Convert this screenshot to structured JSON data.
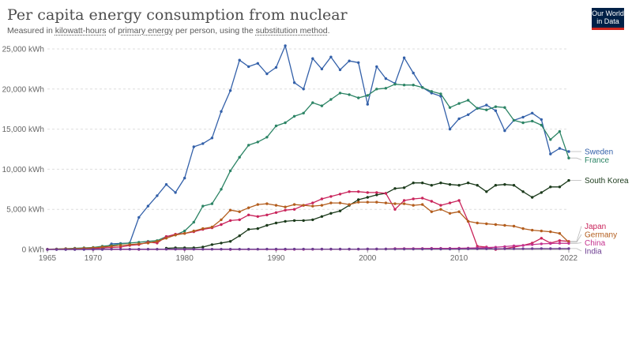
{
  "header": {
    "title": "Per capita energy consumption from nuclear",
    "subtitle_parts": {
      "p1": "Measured in ",
      "l1": "kilowatt-hours",
      "p2": " of ",
      "l2": "primary energy",
      "p3": " per person, using the ",
      "l3": "substitution method",
      "p4": "."
    }
  },
  "logo": {
    "line1": "Our World",
    "line2": "in Data",
    "colors": {
      "bg": "#002147",
      "accent": "#ce261e"
    }
  },
  "chart_data": {
    "type": "line",
    "title": "Per capita energy consumption from nuclear",
    "xlim": [
      1965,
      2022
    ],
    "ylim": [
      0,
      25000
    ],
    "x_ticks": [
      1965,
      1970,
      1980,
      1990,
      2000,
      2010,
      2022
    ],
    "y_ticks": [
      {
        "value": 0,
        "label": "0 kWh"
      },
      {
        "value": 5000,
        "label": "5,000 kWh"
      },
      {
        "value": 10000,
        "label": "10,000 kWh"
      },
      {
        "value": 15000,
        "label": "15,000 kWh"
      },
      {
        "value": 20000,
        "label": "20,000 kWh"
      },
      {
        "value": 25000,
        "label": "25,000 kWh"
      }
    ],
    "grid": true,
    "legend": "right, labels at line ends",
    "series": [
      {
        "name": "Sweden",
        "color": "#3360a9",
        "x": [
          1965,
          1966,
          1967,
          1968,
          1969,
          1970,
          1971,
          1972,
          1973,
          1974,
          1975,
          1976,
          1977,
          1978,
          1979,
          1980,
          1981,
          1982,
          1983,
          1984,
          1985,
          1986,
          1987,
          1988,
          1989,
          1990,
          1991,
          1992,
          1993,
          1994,
          1995,
          1996,
          1997,
          1998,
          1999,
          2000,
          2001,
          2002,
          2003,
          2004,
          2005,
          2006,
          2007,
          2008,
          2009,
          2010,
          2011,
          2012,
          2013,
          2014,
          2015,
          2016,
          2017,
          2018,
          2019,
          2020,
          2021,
          2022
        ],
        "y": [
          0,
          0,
          0,
          0,
          0,
          0,
          0,
          700,
          750,
          800,
          4000,
          5400,
          6700,
          8100,
          7100,
          8900,
          12800,
          13200,
          13900,
          17200,
          19800,
          23600,
          22800,
          23200,
          21900,
          22700,
          25400,
          20800,
          20000,
          23800,
          22500,
          24000,
          22400,
          23500,
          23300,
          18100,
          22800,
          21300,
          20700,
          23900,
          22000,
          20200,
          19500,
          19100,
          15000,
          16300,
          16800,
          17600,
          18000,
          17300,
          14800,
          16100,
          16500,
          17000,
          16200,
          11900,
          12600,
          12200
        ]
      },
      {
        "name": "France",
        "color": "#2c8465",
        "x": [
          1965,
          1966,
          1967,
          1968,
          1969,
          1970,
          1971,
          1972,
          1973,
          1974,
          1975,
          1976,
          1977,
          1978,
          1979,
          1980,
          1981,
          1982,
          1983,
          1984,
          1985,
          1986,
          1987,
          1988,
          1989,
          1990,
          1991,
          1992,
          1993,
          1994,
          1995,
          1996,
          1997,
          1998,
          1999,
          2000,
          2001,
          2002,
          2003,
          2004,
          2005,
          2006,
          2007,
          2008,
          2009,
          2010,
          2011,
          2012,
          2013,
          2014,
          2015,
          2016,
          2017,
          2018,
          2019,
          2020,
          2021,
          2022
        ],
        "y": [
          20,
          60,
          100,
          150,
          200,
          250,
          400,
          500,
          700,
          800,
          900,
          1000,
          1100,
          1600,
          1800,
          2300,
          3400,
          5400,
          5700,
          7500,
          9800,
          11500,
          13000,
          13400,
          14000,
          15400,
          15800,
          16600,
          17000,
          18300,
          17900,
          18700,
          19500,
          19300,
          18900,
          19200,
          20000,
          20100,
          20600,
          20500,
          20500,
          20200,
          19700,
          19400,
          17700,
          18200,
          18600,
          17600,
          17400,
          17800,
          17700,
          16100,
          15800,
          16000,
          15500,
          13700,
          14700,
          11400
        ]
      },
      {
        "name": "South Korea",
        "color": "#1b3a1b",
        "x": [
          1978,
          1979,
          1980,
          1981,
          1982,
          1983,
          1984,
          1985,
          1986,
          1987,
          1988,
          1989,
          1990,
          1991,
          1992,
          1993,
          1994,
          1995,
          1996,
          1997,
          1998,
          1999,
          2000,
          2001,
          2002,
          2003,
          2004,
          2005,
          2006,
          2007,
          2008,
          2009,
          2010,
          2011,
          2012,
          2013,
          2014,
          2015,
          2016,
          2017,
          2018,
          2019,
          2020,
          2021,
          2022
        ],
        "y": [
          150,
          200,
          200,
          200,
          300,
          600,
          800,
          1000,
          1700,
          2500,
          2600,
          3000,
          3300,
          3500,
          3600,
          3600,
          3700,
          4100,
          4500,
          4800,
          5500,
          6200,
          6500,
          6800,
          7000,
          7600,
          7700,
          8300,
          8300,
          8000,
          8300,
          8100,
          8000,
          8300,
          8000,
          7200,
          8000,
          8100,
          8000,
          7200,
          6500,
          7100,
          7800,
          7800,
          8600
        ]
      },
      {
        "name": "Japan",
        "color": "#c9245b",
        "x": [
          1965,
          1966,
          1967,
          1968,
          1969,
          1970,
          1971,
          1972,
          1973,
          1974,
          1975,
          1976,
          1977,
          1978,
          1979,
          1980,
          1981,
          1982,
          1983,
          1984,
          1985,
          1986,
          1987,
          1988,
          1989,
          1990,
          1991,
          1992,
          1993,
          1994,
          1995,
          1996,
          1997,
          1998,
          1999,
          2000,
          2001,
          2002,
          2003,
          2004,
          2005,
          2006,
          2007,
          2008,
          2009,
          2010,
          2011,
          2012,
          2013,
          2014,
          2015,
          2016,
          2017,
          2018,
          2019,
          2020,
          2021,
          2022
        ],
        "y": [
          10,
          20,
          30,
          40,
          60,
          100,
          200,
          250,
          300,
          500,
          600,
          900,
          800,
          1600,
          1900,
          2000,
          2200,
          2500,
          2700,
          3100,
          3600,
          3700,
          4300,
          4100,
          4300,
          4600,
          4900,
          5000,
          5500,
          5800,
          6300,
          6600,
          6900,
          7200,
          7200,
          7100,
          7100,
          7000,
          5000,
          6100,
          6300,
          6400,
          6000,
          5500,
          5800,
          6100,
          3500,
          400,
          300,
          0,
          100,
          300,
          500,
          800,
          1400,
          800,
          1100,
          1000
        ]
      },
      {
        "name": "Germany",
        "color": "#b35d1d",
        "x": [
          1965,
          1966,
          1967,
          1968,
          1969,
          1970,
          1971,
          1972,
          1973,
          1974,
          1975,
          1976,
          1977,
          1978,
          1979,
          1980,
          1981,
          1982,
          1983,
          1984,
          1985,
          1986,
          1987,
          1988,
          1989,
          1990,
          1991,
          1992,
          1993,
          1994,
          1995,
          1996,
          1997,
          1998,
          1999,
          2000,
          2001,
          2002,
          2003,
          2004,
          2005,
          2006,
          2007,
          2008,
          2009,
          2010,
          2011,
          2012,
          2013,
          2014,
          2015,
          2016,
          2017,
          2018,
          2019,
          2020,
          2021,
          2022
        ],
        "y": [
          20,
          40,
          80,
          100,
          150,
          200,
          300,
          400,
          500,
          600,
          700,
          800,
          1000,
          1400,
          1800,
          2000,
          2300,
          2600,
          2800,
          3700,
          4900,
          4700,
          5200,
          5600,
          5700,
          5500,
          5300,
          5600,
          5500,
          5400,
          5500,
          5800,
          5800,
          5600,
          5900,
          5900,
          5900,
          5800,
          5700,
          5700,
          5500,
          5600,
          4700,
          5000,
          4500,
          4700,
          3500,
          3300,
          3200,
          3100,
          3000,
          2900,
          2600,
          2400,
          2300,
          2200,
          2000,
          900
        ]
      },
      {
        "name": "China",
        "color": "#c4318e",
        "x": [
          1965,
          1970,
          1975,
          1980,
          1985,
          1990,
          1991,
          1992,
          1993,
          1994,
          1995,
          1996,
          1997,
          1998,
          1999,
          2000,
          2001,
          2002,
          2003,
          2004,
          2005,
          2006,
          2007,
          2008,
          2009,
          2010,
          2011,
          2012,
          2013,
          2014,
          2015,
          2016,
          2017,
          2018,
          2019,
          2020,
          2021,
          2022
        ],
        "y": [
          0,
          0,
          0,
          0,
          0,
          0,
          2,
          5,
          10,
          30,
          35,
          37,
          38,
          38,
          38,
          45,
          50,
          55,
          100,
          110,
          110,
          115,
          140,
          140,
          140,
          150,
          170,
          200,
          230,
          280,
          350,
          450,
          500,
          600,
          700,
          740,
          780,
          760
        ]
      },
      {
        "name": "India",
        "color": "#6d3e91",
        "x": [
          1965,
          1966,
          1967,
          1968,
          1969,
          1970,
          1971,
          1972,
          1973,
          1974,
          1975,
          1976,
          1977,
          1978,
          1979,
          1980,
          1981,
          1982,
          1983,
          1984,
          1985,
          1986,
          1987,
          1988,
          1989,
          1990,
          1991,
          1992,
          1993,
          1994,
          1995,
          1996,
          1997,
          1998,
          1999,
          2000,
          2001,
          2002,
          2003,
          2004,
          2005,
          2006,
          2007,
          2008,
          2009,
          2010,
          2011,
          2012,
          2013,
          2014,
          2015,
          2016,
          2017,
          2018,
          2019,
          2020,
          2021,
          2022
        ],
        "y": [
          0,
          0,
          0,
          0,
          10,
          20,
          20,
          25,
          25,
          25,
          25,
          25,
          25,
          30,
          30,
          30,
          30,
          30,
          30,
          30,
          30,
          30,
          30,
          30,
          40,
          40,
          40,
          40,
          40,
          40,
          40,
          40,
          40,
          40,
          40,
          50,
          50,
          50,
          50,
          50,
          50,
          50,
          50,
          50,
          50,
          60,
          80,
          80,
          80,
          80,
          90,
          90,
          90,
          100,
          110,
          100,
          110,
          110
        ]
      }
    ],
    "legend_labels": [
      {
        "name": "Sweden",
        "color": "#3360a9"
      },
      {
        "name": "France",
        "color": "#2c8465"
      },
      {
        "name": "South Korea",
        "color": "#1b3a1b"
      },
      {
        "name": "Japan",
        "color": "#c9245b"
      },
      {
        "name": "Germany",
        "color": "#b35d1d"
      },
      {
        "name": "China",
        "color": "#c4318e"
      },
      {
        "name": "India",
        "color": "#6d3e91"
      }
    ]
  }
}
